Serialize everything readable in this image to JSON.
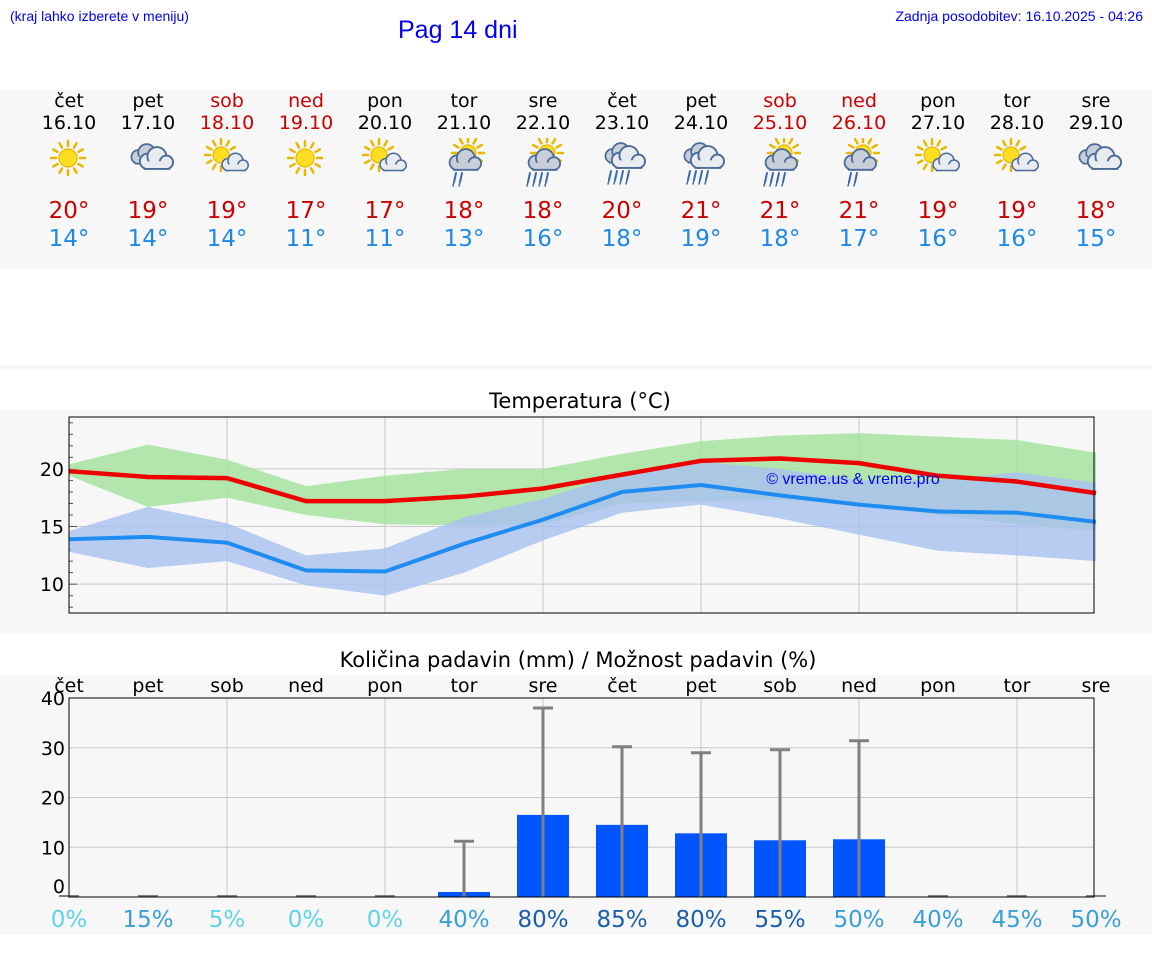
{
  "header": {
    "location_hint": "(kraj lahko izberete v meniju)",
    "title": "Pag 14 dni",
    "last_update": "Zadnja posodobitev: 16.10.2025 - 04:26"
  },
  "colors": {
    "weekend": "#cc0000",
    "weekday": "#000000",
    "temp_max": "#cc0000",
    "temp_min": "#1e88e5",
    "max_line": "#ee0000",
    "min_line": "#1e8cf0",
    "max_band": "#a6e3a0",
    "min_band": "#a8c0f0",
    "bar": "#0055ff",
    "errorbar": "#808080"
  },
  "days": [
    {
      "name": "čet",
      "date": "16.10",
      "weekend": false,
      "icon": "sun-icon",
      "max": "20°",
      "min": "14°"
    },
    {
      "name": "pet",
      "date": "17.10",
      "weekend": false,
      "icon": "cloudy-icon",
      "max": "19°",
      "min": "14°"
    },
    {
      "name": "sob",
      "date": "18.10",
      "weekend": true,
      "icon": "sun-cloud-icon",
      "max": "19°",
      "min": "14°"
    },
    {
      "name": "ned",
      "date": "19.10",
      "weekend": true,
      "icon": "sun-icon",
      "max": "17°",
      "min": "11°"
    },
    {
      "name": "pon",
      "date": "20.10",
      "weekend": false,
      "icon": "sun-cloud-icon",
      "max": "17°",
      "min": "11°"
    },
    {
      "name": "tor",
      "date": "21.10",
      "weekend": false,
      "icon": "sun-cloud-rain-icon",
      "max": "18°",
      "min": "13°"
    },
    {
      "name": "sre",
      "date": "22.10",
      "weekend": false,
      "icon": "sun-cloud-heavy-rain-icon",
      "max": "18°",
      "min": "16°"
    },
    {
      "name": "čet",
      "date": "23.10",
      "weekend": false,
      "icon": "cloud-heavy-rain-icon",
      "max": "20°",
      "min": "18°"
    },
    {
      "name": "pet",
      "date": "24.10",
      "weekend": false,
      "icon": "cloud-heavy-rain-icon",
      "max": "21°",
      "min": "19°"
    },
    {
      "name": "sob",
      "date": "25.10",
      "weekend": true,
      "icon": "sun-cloud-heavy-rain-icon",
      "max": "21°",
      "min": "18°"
    },
    {
      "name": "ned",
      "date": "26.10",
      "weekend": true,
      "icon": "sun-cloud-rain-icon",
      "max": "21°",
      "min": "17°"
    },
    {
      "name": "pon",
      "date": "27.10",
      "weekend": false,
      "icon": "sun-cloud-icon",
      "max": "19°",
      "min": "16°"
    },
    {
      "name": "tor",
      "date": "28.10",
      "weekend": false,
      "icon": "sun-cloud-icon",
      "max": "19°",
      "min": "16°"
    },
    {
      "name": "sre",
      "date": "29.10",
      "weekend": false,
      "icon": "cloudy-icon",
      "max": "18°",
      "min": "15°"
    }
  ],
  "chart_data": [
    {
      "type": "line",
      "title": "Temperatura (°C)",
      "watermark": "© vreme.us & vreme.pro",
      "xlabel": "",
      "ylabel": "",
      "ylim": [
        7.5,
        24.5
      ],
      "yticks": [
        10,
        15,
        20
      ],
      "grid": true,
      "x": [
        0,
        1,
        2,
        3,
        4,
        5,
        6,
        7,
        8,
        9,
        10,
        11,
        12,
        13
      ],
      "series": [
        {
          "name": "max",
          "values": [
            19.8,
            19.3,
            19.2,
            17.2,
            17.2,
            17.6,
            18.3,
            19.5,
            20.7,
            20.9,
            20.5,
            19.4,
            18.9,
            17.9
          ]
        },
        {
          "name": "min",
          "values": [
            13.9,
            14.1,
            13.6,
            11.2,
            11.1,
            13.5,
            15.6,
            18.0,
            18.6,
            17.7,
            16.9,
            16.3,
            16.2,
            15.4
          ]
        }
      ],
      "bands": [
        {
          "name": "max_range",
          "low": [
            19.4,
            16.7,
            17.5,
            16.0,
            15.2,
            15.1,
            15.2,
            17.0,
            17.2,
            17.3,
            16.9,
            16.0,
            15.2,
            14.6
          ],
          "high": [
            20.4,
            22.1,
            20.8,
            18.5,
            19.4,
            20.0,
            20.0,
            21.3,
            22.4,
            22.9,
            23.1,
            22.8,
            22.5,
            21.4
          ]
        },
        {
          "name": "min_range",
          "low": [
            12.8,
            11.4,
            12.0,
            9.9,
            9.0,
            11.0,
            13.8,
            16.2,
            16.9,
            15.7,
            14.3,
            12.9,
            12.5,
            12.0
          ],
          "high": [
            14.6,
            16.7,
            15.3,
            12.5,
            13.1,
            15.8,
            17.4,
            19.6,
            20.6,
            20.0,
            19.0,
            19.0,
            19.7,
            18.8
          ]
        }
      ]
    },
    {
      "type": "bar",
      "title": "Količina padavin (mm) / Možnost padavin (%)",
      "xlabel": "",
      "ylabel": "",
      "ylim": [
        0,
        40
      ],
      "yticks": [
        0,
        10,
        20,
        30,
        40
      ],
      "grid": true,
      "categories": [
        "čet",
        "pet",
        "sob",
        "ned",
        "pon",
        "tor",
        "sre",
        "čet",
        "pet",
        "sob",
        "ned",
        "pon",
        "tor",
        "sre"
      ],
      "values": [
        0,
        0,
        0,
        0,
        0,
        1.0,
        16.5,
        14.5,
        12.8,
        11.4,
        11.6,
        0,
        0,
        0
      ],
      "error_high": [
        0,
        0,
        0,
        0,
        0,
        11.2,
        38.0,
        30.2,
        29.0,
        29.6,
        31.4,
        0,
        0,
        0
      ],
      "probability": [
        "0%",
        "15%",
        "5%",
        "0%",
        "0%",
        "40%",
        "80%",
        "85%",
        "80%",
        "55%",
        "50%",
        "40%",
        "45%",
        "50%"
      ],
      "probability_colors": [
        "#5fd3e8",
        "#3a9fd8",
        "#5fd3e8",
        "#5fd3e8",
        "#5fd3e8",
        "#3a9fd8",
        "#1b5eab",
        "#1b5eab",
        "#1b5eab",
        "#1b5eab",
        "#3a9fd8",
        "#3a9fd8",
        "#3a9fd8",
        "#3a9fd8"
      ]
    }
  ]
}
